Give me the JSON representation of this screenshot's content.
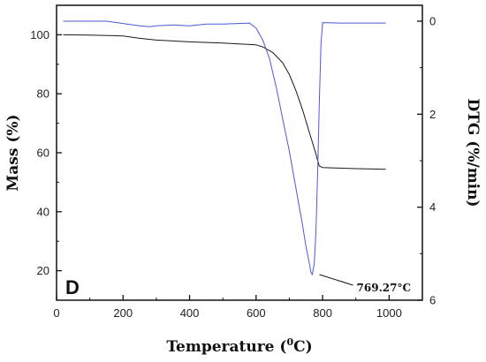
{
  "chart_data": {
    "type": "line",
    "panel_label": "D",
    "xlabel": {
      "main": "Temperature (",
      "sup": "0",
      "unit": "C)"
    },
    "ylabel_left": "Mass (%)",
    "ylabel_right": "DTG (%/min)",
    "xlim": [
      0,
      1100
    ],
    "ylim_left": [
      10,
      110
    ],
    "ylim_right": [
      0,
      6
    ],
    "right_axis_inverted": true,
    "x_ticks": [
      0,
      200,
      400,
      600,
      800,
      1000
    ],
    "y_left_ticks": [
      20,
      40,
      60,
      80,
      100
    ],
    "y_right_ticks": [
      0,
      2,
      4,
      6
    ],
    "grid": false,
    "series": [
      {
        "axis": "left",
        "color": "#1a1a1a",
        "x": [
          20,
          100,
          200,
          250,
          300,
          400,
          500,
          600,
          620,
          650,
          680,
          700,
          720,
          740,
          760,
          780,
          790,
          800,
          850,
          900,
          950,
          990
        ],
        "y": [
          100.0,
          99.9,
          99.6,
          98.8,
          98.2,
          97.6,
          97.2,
          96.6,
          95.9,
          94.0,
          90.5,
          86.5,
          81.0,
          74.5,
          67.0,
          59.5,
          55.5,
          55.0,
          54.8,
          54.6,
          54.5,
          54.4
        ]
      },
      {
        "axis": "right",
        "color": "#4a5ad8",
        "x": [
          20,
          50,
          100,
          150,
          200,
          250,
          280,
          300,
          350,
          400,
          450,
          500,
          550,
          580,
          600,
          620,
          640,
          660,
          680,
          700,
          720,
          740,
          750,
          760,
          765,
          769.27,
          775,
          780,
          785,
          790,
          795,
          800,
          850,
          900,
          950,
          990
        ],
        "y": [
          0.0,
          0.0,
          0.0,
          0.0,
          0.05,
          0.1,
          0.12,
          0.1,
          0.08,
          0.1,
          0.06,
          0.06,
          0.05,
          0.04,
          0.15,
          0.4,
          0.8,
          1.4,
          2.1,
          2.8,
          3.6,
          4.4,
          4.85,
          5.2,
          5.4,
          5.45,
          5.2,
          4.5,
          3.3,
          1.8,
          0.5,
          0.03,
          0.04,
          0.04,
          0.04,
          0.04
        ]
      }
    ],
    "annotations": [
      {
        "text": "769.27°C",
        "x": 769.27,
        "axis": "right",
        "y": 5.45
      }
    ]
  }
}
